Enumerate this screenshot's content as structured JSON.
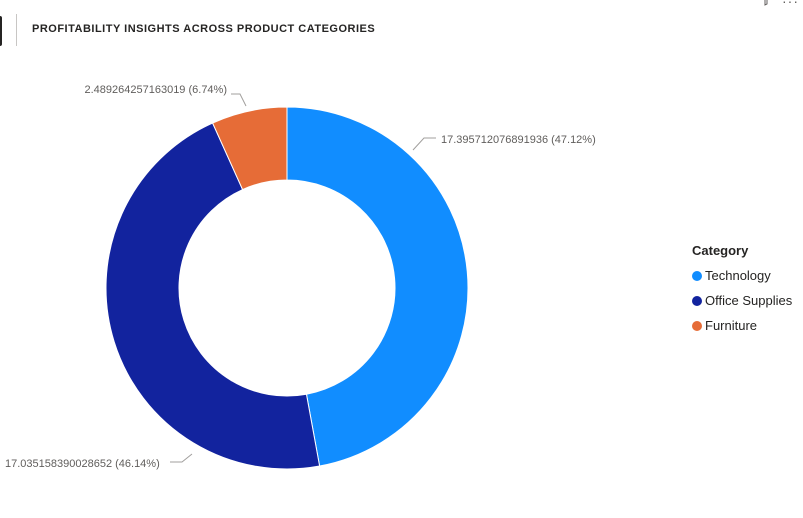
{
  "header": {
    "title": "PROFITABILITY INSIGHTS ACROSS PRODUCT CATEGORIES",
    "filter_icon": "filter-icon",
    "more_icon": "more-options-icon",
    "more_glyph": "···"
  },
  "chart_data": {
    "type": "pie",
    "subtype": "donut",
    "title": "PROFITABILITY INSIGHTS ACROSS PRODUCT CATEGORIES",
    "categories": [
      "Technology",
      "Office Supplies",
      "Furniture"
    ],
    "values": [
      17.395712076891936,
      17.035158390028652,
      2.489264257163019
    ],
    "percent_labels": [
      "47.12%",
      "46.14%",
      "6.74%"
    ],
    "data_labels": [
      "17.395712076891936 (47.12%)",
      "17.035158390028652 (46.14%)",
      "2.489264257163019 (6.74%)"
    ],
    "colors": [
      "#118dff",
      "#12239e",
      "#e66c37"
    ],
    "legend": {
      "title": "Category",
      "position": "right"
    }
  }
}
